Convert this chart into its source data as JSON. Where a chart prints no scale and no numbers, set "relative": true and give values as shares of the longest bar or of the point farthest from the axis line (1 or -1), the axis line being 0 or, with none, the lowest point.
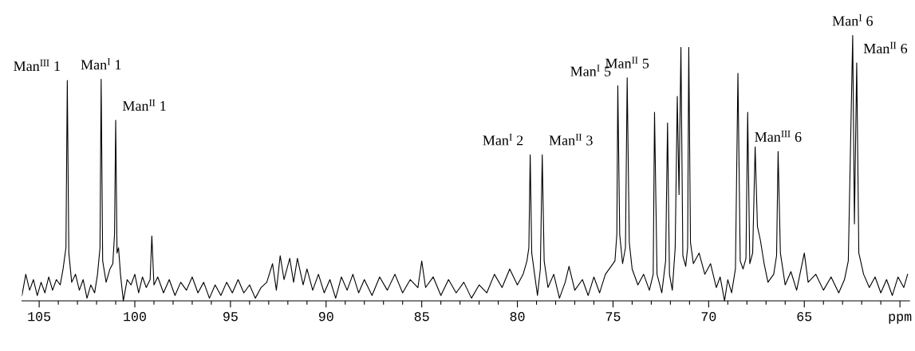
{
  "chart_data": {
    "type": "line",
    "relative": true,
    "xlim": [
      105.9,
      59.5
    ],
    "xticks": [
      105,
      100,
      95,
      90,
      85,
      80,
      75,
      70,
      65,
      {
        "value": 60,
        "label": "ppm"
      },
      {
        "value": 104,
        "label": null
      },
      {
        "value": 103,
        "label": null
      },
      {
        "value": 102,
        "label": null
      },
      {
        "value": 101,
        "label": null
      },
      {
        "value": 99,
        "label": null
      },
      {
        "value": 98,
        "label": null
      },
      {
        "value": 97,
        "label": null
      },
      {
        "value": 96,
        "label": null
      },
      {
        "value": 94,
        "label": null
      },
      {
        "value": 93,
        "label": null
      },
      {
        "value": 92,
        "label": null
      },
      {
        "value": 91,
        "label": null
      },
      {
        "value": 89,
        "label": null
      },
      {
        "value": 88,
        "label": null
      },
      {
        "value": 87,
        "label": null
      },
      {
        "value": 86,
        "label": null
      },
      {
        "value": 84,
        "label": null
      },
      {
        "value": 83,
        "label": null
      },
      {
        "value": 82,
        "label": null
      },
      {
        "value": 81,
        "label": null
      },
      {
        "value": 79,
        "label": null
      },
      {
        "value": 78,
        "label": null
      },
      {
        "value": 77,
        "label": null
      },
      {
        "value": 76,
        "label": null
      },
      {
        "value": 74,
        "label": null
      },
      {
        "value": 73,
        "label": null
      },
      {
        "value": 72,
        "label": null
      },
      {
        "value": 71,
        "label": null
      },
      {
        "value": 69,
        "label": null
      },
      {
        "value": 68,
        "label": null
      },
      {
        "value": 67,
        "label": null
      },
      {
        "value": 66,
        "label": null
      },
      {
        "value": 64,
        "label": null
      },
      {
        "value": 63,
        "label": null
      },
      {
        "value": 62,
        "label": null
      },
      {
        "value": 61,
        "label": null
      }
    ],
    "grid": false,
    "legend": false,
    "marker": "none",
    "line_style": "solid",
    "series": [
      {
        "color": "#000000",
        "x": [
          105.9,
          105.7,
          105.5,
          105.3,
          105.1,
          104.9,
          104.7,
          104.5,
          104.3,
          104.1,
          103.9,
          103.75,
          103.6,
          103.53,
          103.45,
          103.3,
          103.1,
          102.9,
          102.7,
          102.5,
          102.3,
          102.1,
          101.95,
          101.82,
          101.76,
          101.68,
          101.5,
          101.3,
          101.15,
          101.06,
          101.0,
          100.93,
          100.85,
          100.75,
          100.6,
          100.4,
          100.2,
          100.0,
          99.8,
          99.6,
          99.4,
          99.2,
          99.11,
          99.0,
          98.8,
          98.5,
          98.2,
          97.9,
          97.6,
          97.3,
          97.0,
          96.7,
          96.4,
          96.1,
          95.8,
          95.5,
          95.2,
          94.9,
          94.6,
          94.3,
          94.0,
          93.7,
          93.4,
          93.1,
          92.8,
          92.6,
          92.4,
          92.2,
          91.9,
          91.7,
          91.5,
          91.2,
          91.0,
          90.7,
          90.4,
          90.1,
          89.8,
          89.5,
          89.2,
          88.9,
          88.6,
          88.3,
          88.0,
          87.6,
          87.2,
          86.8,
          86.4,
          86.0,
          85.6,
          85.2,
          85.0,
          84.8,
          84.4,
          84.0,
          83.6,
          83.2,
          82.8,
          82.4,
          82.0,
          81.6,
          81.2,
          80.8,
          80.4,
          80.0,
          79.7,
          79.5,
          79.4,
          79.33,
          79.25,
          79.1,
          78.95,
          78.8,
          78.7,
          78.6,
          78.4,
          78.1,
          77.8,
          77.5,
          77.3,
          77.0,
          76.6,
          76.3,
          76.0,
          75.7,
          75.4,
          75.1,
          74.9,
          74.8,
          74.75,
          74.65,
          74.5,
          74.35,
          74.26,
          74.15,
          74.0,
          73.7,
          73.4,
          73.1,
          72.9,
          72.83,
          72.7,
          72.45,
          72.25,
          72.15,
          72.05,
          71.9,
          71.75,
          71.64,
          71.55,
          71.45,
          71.35,
          71.2,
          71.1,
          71.04,
          70.95,
          70.8,
          70.5,
          70.2,
          69.9,
          69.6,
          69.4,
          69.17,
          69.0,
          68.8,
          68.6,
          68.47,
          68.35,
          68.2,
          68.05,
          67.96,
          67.85,
          67.7,
          67.57,
          67.45,
          67.3,
          67.1,
          66.9,
          66.6,
          66.45,
          66.37,
          66.25,
          66.0,
          65.7,
          65.4,
          65.0,
          64.8,
          64.4,
          64.0,
          63.6,
          63.2,
          62.9,
          62.7,
          62.47,
          62.38,
          62.26,
          62.15,
          61.9,
          61.6,
          61.3,
          61.0,
          60.7,
          60.4,
          60.1,
          59.8,
          59.6
        ],
        "values": [
          0.02,
          0.1,
          0.04,
          0.08,
          0.02,
          0.07,
          0.03,
          0.09,
          0.04,
          0.08,
          0.06,
          0.12,
          0.2,
          0.83,
          0.18,
          0.07,
          0.1,
          0.04,
          0.08,
          0.01,
          0.06,
          0.03,
          0.1,
          0.2,
          0.835,
          0.15,
          0.07,
          0.12,
          0.14,
          0.25,
          0.68,
          0.18,
          0.2,
          0.1,
          0.0,
          0.08,
          0.06,
          0.1,
          0.03,
          0.09,
          0.05,
          0.08,
          0.244,
          0.06,
          0.09,
          0.03,
          0.08,
          0.02,
          0.07,
          0.04,
          0.09,
          0.03,
          0.07,
          0.01,
          0.06,
          0.02,
          0.07,
          0.03,
          0.08,
          0.03,
          0.06,
          0.01,
          0.05,
          0.07,
          0.14,
          0.04,
          0.17,
          0.08,
          0.16,
          0.07,
          0.16,
          0.06,
          0.12,
          0.04,
          0.1,
          0.03,
          0.08,
          0.01,
          0.09,
          0.04,
          0.1,
          0.03,
          0.08,
          0.02,
          0.09,
          0.04,
          0.1,
          0.03,
          0.08,
          0.05,
          0.15,
          0.05,
          0.09,
          0.02,
          0.08,
          0.03,
          0.07,
          0.01,
          0.06,
          0.03,
          0.1,
          0.05,
          0.12,
          0.06,
          0.1,
          0.15,
          0.2,
          0.55,
          0.18,
          0.1,
          0.02,
          0.12,
          0.55,
          0.15,
          0.05,
          0.1,
          0.01,
          0.07,
          0.13,
          0.04,
          0.08,
          0.02,
          0.09,
          0.03,
          0.1,
          0.13,
          0.15,
          0.25,
          0.81,
          0.25,
          0.14,
          0.2,
          0.84,
          0.22,
          0.12,
          0.06,
          0.1,
          0.04,
          0.1,
          0.71,
          0.1,
          0.03,
          0.15,
          0.67,
          0.1,
          0.04,
          0.2,
          0.77,
          0.4,
          0.955,
          0.17,
          0.13,
          0.2,
          0.955,
          0.22,
          0.14,
          0.18,
          0.1,
          0.14,
          0.05,
          0.09,
          0.0,
          0.08,
          0.03,
          0.12,
          0.857,
          0.15,
          0.12,
          0.16,
          0.71,
          0.14,
          0.18,
          0.58,
          0.28,
          0.23,
          0.14,
          0.07,
          0.1,
          0.17,
          0.563,
          0.18,
          0.06,
          0.11,
          0.04,
          0.18,
          0.07,
          0.1,
          0.04,
          0.09,
          0.03,
          0.08,
          0.15,
          1.0,
          0.29,
          0.896,
          0.18,
          0.1,
          0.05,
          0.09,
          0.03,
          0.08,
          0.02,
          0.09,
          0.05,
          0.1
        ]
      }
    ],
    "annotations": [
      {
        "text": "Man$^{III}$ 1",
        "x": 103.53,
        "y": 0.83
      },
      {
        "text": "Man$^{I}$ 1",
        "x": 101.76,
        "y": 0.835
      },
      {
        "text": "Man$^{II}$ 1",
        "x": 101.0,
        "y": 0.68
      },
      {
        "text": "Man$^{I}$ 2",
        "x": 79.33,
        "y": 0.55
      },
      {
        "text": "Man$^{II}$ 3",
        "x": 78.7,
        "y": 0.55
      },
      {
        "text": "Man$^{I}$ 5",
        "x": 74.75,
        "y": 0.81
      },
      {
        "text": "Man$^{II}$ 5",
        "x": 74.26,
        "y": 0.84
      },
      {
        "text": "Man$^{III}$ 6",
        "x": 66.37,
        "y": 0.563
      },
      {
        "text": "Man$^{I}$ 6",
        "x": 62.47,
        "y": 1.0
      },
      {
        "text": "Man$^{II}$ 6",
        "x": 62.26,
        "y": 0.896
      }
    ]
  }
}
